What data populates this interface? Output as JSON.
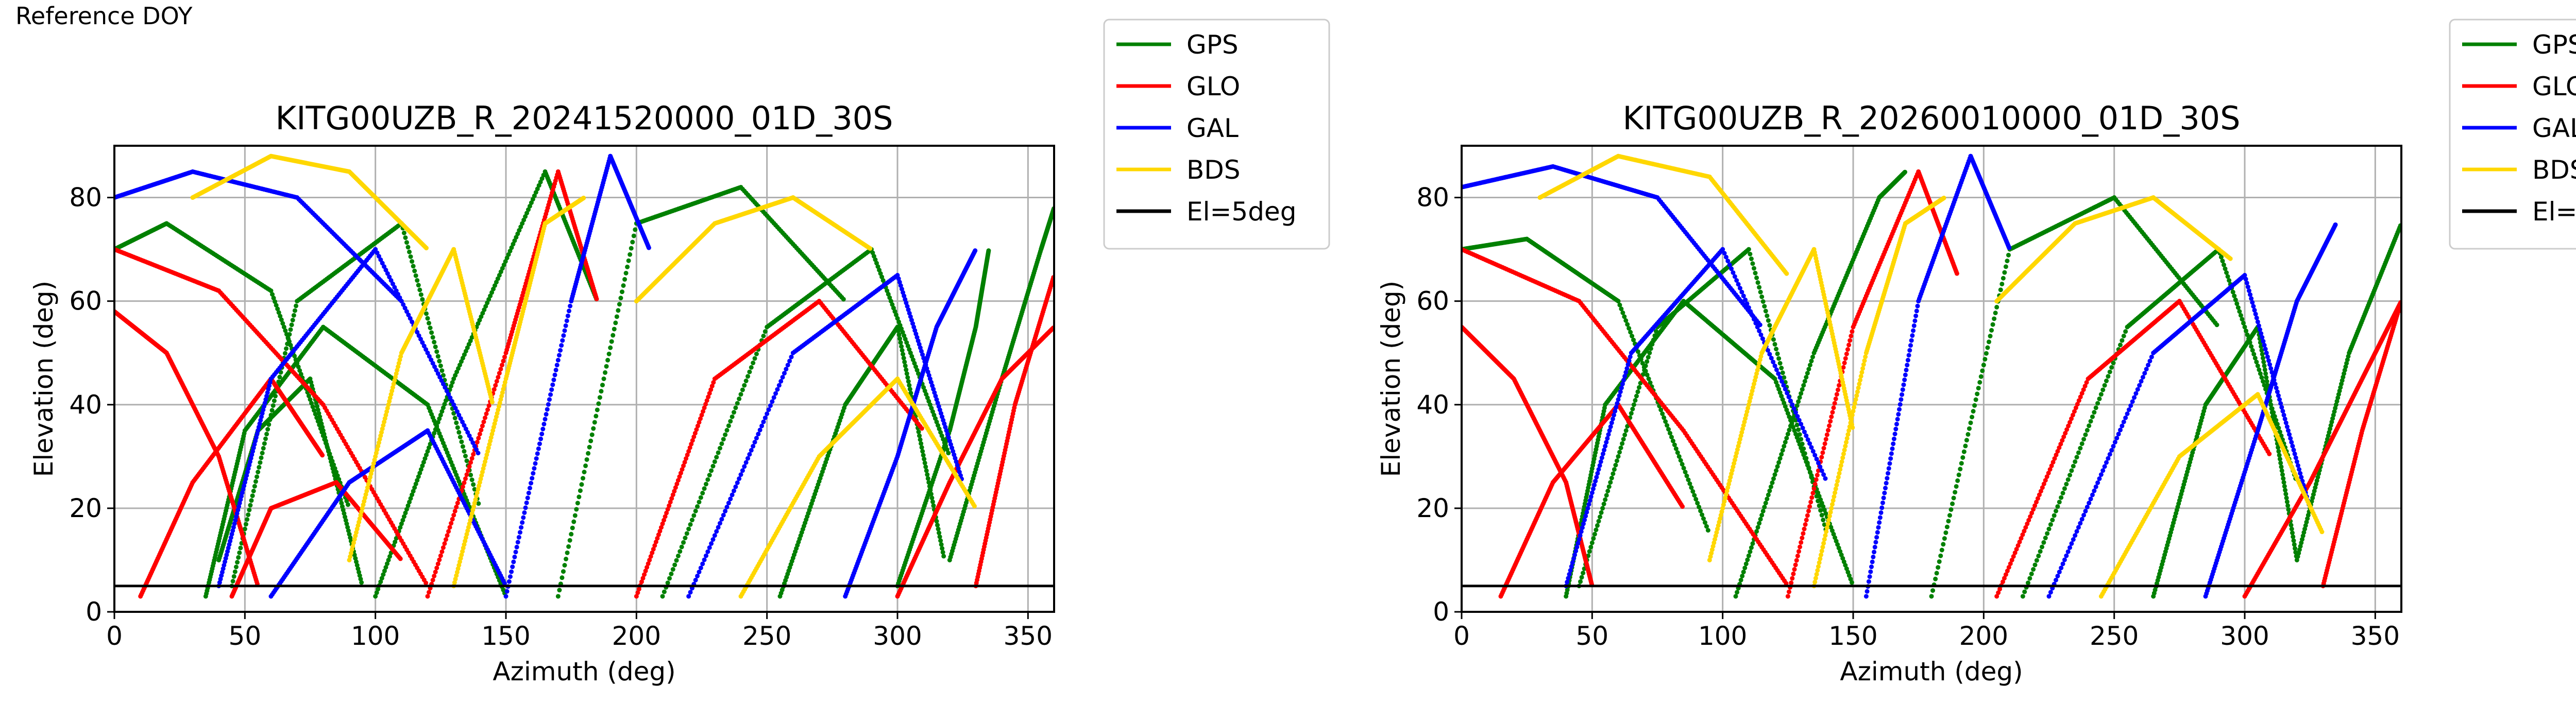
{
  "figure": {
    "label": "Reference DOY"
  },
  "legend": {
    "placement": "outside-right",
    "entries": [
      {
        "name": "GPS",
        "color": "#008000"
      },
      {
        "name": "GLO",
        "color": "#ff0000"
      },
      {
        "name": "GAL",
        "color": "#0000ff"
      },
      {
        "name": "BDS",
        "color": "#ffd700"
      },
      {
        "name": "El=5deg",
        "color": "#000000"
      }
    ]
  },
  "chart_data": [
    {
      "type": "scatter",
      "title": "KITG00UZB_R_20241520000_01D_30S",
      "xlabel": "Azimuth (deg)",
      "ylabel": "Elevation (deg)",
      "xlim": [
        0,
        360
      ],
      "ylim": [
        0,
        90
      ],
      "xticks": [
        0,
        50,
        100,
        150,
        200,
        250,
        300,
        350
      ],
      "yticks": [
        0,
        20,
        40,
        60,
        80
      ],
      "grid": true,
      "reference_line": {
        "name": "El=5deg",
        "y": 5,
        "color": "#000000"
      },
      "series": [
        {
          "name": "GPS",
          "color": "#008000",
          "passes": [
            {
              "az": [
                35,
                50,
                80,
                120,
                150
              ],
              "el": [
                3,
                35,
                55,
                40,
                3
              ]
            },
            {
              "az": [
                100,
                130,
                165,
                185
              ],
              "el": [
                3,
                45,
                85,
                60
              ]
            },
            {
              "az": [
                210,
                250,
                290,
                320
              ],
              "el": [
                3,
                55,
                70,
                30
              ]
            },
            {
              "az": [
                45,
                70,
                110,
                140
              ],
              "el": [
                5,
                60,
                75,
                20
              ]
            },
            {
              "az": [
                255,
                280,
                300,
                318
              ],
              "el": [
                3,
                40,
                55,
                10
              ]
            },
            {
              "az": [
                320,
                340,
                355,
                360
              ],
              "el": [
                10,
                45,
                70,
                78
              ]
            },
            {
              "az": [
                0,
                20,
                60,
                90
              ],
              "el": [
                70,
                75,
                62,
                20
              ]
            },
            {
              "az": [
                40,
                55,
                75,
                95
              ],
              "el": [
                10,
                35,
                45,
                5
              ]
            },
            {
              "az": [
                170,
                200,
                240,
                280
              ],
              "el": [
                3,
                75,
                82,
                60
              ]
            },
            {
              "az": [
                300,
                320,
                330,
                335
              ],
              "el": [
                5,
                35,
                55,
                70
              ]
            }
          ]
        },
        {
          "name": "GLO",
          "color": "#ff0000",
          "passes": [
            {
              "az": [
                0,
                20,
                40,
                55
              ],
              "el": [
                58,
                50,
                30,
                5
              ]
            },
            {
              "az": [
                10,
                30,
                60,
                80
              ],
              "el": [
                3,
                25,
                45,
                30
              ]
            },
            {
              "az": [
                300,
                320,
                340,
                360
              ],
              "el": [
                3,
                25,
                45,
                55
              ]
            },
            {
              "az": [
                120,
                150,
                170,
                185
              ],
              "el": [
                3,
                50,
                85,
                60
              ]
            },
            {
              "az": [
                200,
                230,
                270,
                310
              ],
              "el": [
                3,
                45,
                60,
                35
              ]
            },
            {
              "az": [
                0,
                40,
                80,
                120
              ],
              "el": [
                70,
                62,
                40,
                5
              ]
            },
            {
              "az": [
                330,
                345,
                360
              ],
              "el": [
                5,
                40,
                65
              ]
            },
            {
              "az": [
                45,
                60,
                85,
                110
              ],
              "el": [
                3,
                20,
                25,
                10
              ]
            }
          ]
        },
        {
          "name": "GAL",
          "color": "#0000ff",
          "passes": [
            {
              "az": [
                40,
                60,
                100,
                140
              ],
              "el": [
                5,
                45,
                70,
                30
              ]
            },
            {
              "az": [
                150,
                175,
                190,
                205
              ],
              "el": [
                3,
                60,
                88,
                70
              ]
            },
            {
              "az": [
                220,
                260,
                300,
                325
              ],
              "el": [
                3,
                50,
                65,
                25
              ]
            },
            {
              "az": [
                0,
                30,
                70,
                110
              ],
              "el": [
                80,
                85,
                80,
                60
              ]
            },
            {
              "az": [
                280,
                300,
                315,
                330
              ],
              "el": [
                3,
                30,
                55,
                70
              ]
            },
            {
              "az": [
                60,
                90,
                120,
                150
              ],
              "el": [
                3,
                25,
                35,
                5
              ]
            }
          ]
        },
        {
          "name": "BDS",
          "color": "#ffd700",
          "passes": [
            {
              "az": [
                30,
                60,
                90,
                120
              ],
              "el": [
                80,
                88,
                85,
                70
              ]
            },
            {
              "az": [
                130,
                150,
                165,
                180
              ],
              "el": [
                5,
                45,
                75,
                80
              ]
            },
            {
              "az": [
                200,
                230,
                260,
                290
              ],
              "el": [
                60,
                75,
                80,
                70
              ]
            },
            {
              "az": [
                90,
                110,
                130,
                145
              ],
              "el": [
                10,
                50,
                70,
                40
              ]
            },
            {
              "az": [
                240,
                270,
                300,
                330
              ],
              "el": [
                3,
                30,
                45,
                20
              ]
            }
          ]
        }
      ]
    },
    {
      "type": "scatter",
      "title": "KITG00UZB_R_20260010000_01D_30S",
      "xlabel": "Azimuth (deg)",
      "ylabel": "Elevation (deg)",
      "xlim": [
        0,
        360
      ],
      "ylim": [
        0,
        90
      ],
      "xticks": [
        0,
        50,
        100,
        150,
        200,
        250,
        300,
        350
      ],
      "yticks": [
        0,
        20,
        40,
        60,
        80
      ],
      "grid": true,
      "reference_line": {
        "name": "El=5deg",
        "y": 5,
        "color": "#000000"
      },
      "series": [
        {
          "name": "GPS",
          "color": "#008000",
          "passes": [
            {
              "az": [
                40,
                55,
                85,
                120,
                150
              ],
              "el": [
                3,
                40,
                60,
                45,
                5
              ]
            },
            {
              "az": [
                105,
                135,
                160,
                170
              ],
              "el": [
                3,
                50,
                80,
                85
              ]
            },
            {
              "az": [
                215,
                255,
                290,
                320
              ],
              "el": [
                3,
                55,
                70,
                25
              ]
            },
            {
              "az": [
                45,
                75,
                110,
                140
              ],
              "el": [
                5,
                55,
                70,
                15
              ]
            },
            {
              "az": [
                265,
                285,
                305,
                320
              ],
              "el": [
                3,
                40,
                55,
                10
              ]
            },
            {
              "az": [
                320,
                340,
                360
              ],
              "el": [
                10,
                50,
                75
              ]
            },
            {
              "az": [
                0,
                25,
                60,
                95
              ],
              "el": [
                70,
                72,
                60,
                15
              ]
            },
            {
              "az": [
                180,
                210,
                250,
                290
              ],
              "el": [
                3,
                70,
                80,
                55
              ]
            }
          ]
        },
        {
          "name": "GLO",
          "color": "#ff0000",
          "passes": [
            {
              "az": [
                0,
                20,
                40,
                50
              ],
              "el": [
                55,
                45,
                25,
                5
              ]
            },
            {
              "az": [
                15,
                35,
                60,
                85
              ],
              "el": [
                3,
                25,
                40,
                20
              ]
            },
            {
              "az": [
                300,
                325,
                345,
                360
              ],
              "el": [
                3,
                25,
                45,
                60
              ]
            },
            {
              "az": [
                125,
                150,
                175,
                190
              ],
              "el": [
                3,
                55,
                85,
                65
              ]
            },
            {
              "az": [
                205,
                240,
                275,
                310
              ],
              "el": [
                3,
                45,
                60,
                30
              ]
            },
            {
              "az": [
                0,
                45,
                85,
                125
              ],
              "el": [
                70,
                60,
                35,
                5
              ]
            },
            {
              "az": [
                330,
                345,
                360
              ],
              "el": [
                5,
                35,
                60
              ]
            }
          ]
        },
        {
          "name": "GAL",
          "color": "#0000ff",
          "passes": [
            {
              "az": [
                40,
                65,
                100,
                140
              ],
              "el": [
                5,
                50,
                70,
                25
              ]
            },
            {
              "az": [
                155,
                175,
                195,
                210
              ],
              "el": [
                3,
                60,
                88,
                70
              ]
            },
            {
              "az": [
                225,
                265,
                300,
                325
              ],
              "el": [
                3,
                50,
                65,
                20
              ]
            },
            {
              "az": [
                0,
                35,
                75,
                115
              ],
              "el": [
                82,
                86,
                80,
                55
              ]
            },
            {
              "az": [
                285,
                305,
                320,
                335
              ],
              "el": [
                3,
                35,
                60,
                75
              ]
            }
          ]
        },
        {
          "name": "BDS",
          "color": "#ffd700",
          "passes": [
            {
              "az": [
                30,
                60,
                95,
                125
              ],
              "el": [
                80,
                88,
                84,
                65
              ]
            },
            {
              "az": [
                135,
                155,
                170,
                185
              ],
              "el": [
                5,
                50,
                75,
                80
              ]
            },
            {
              "az": [
                205,
                235,
                265,
                295
              ],
              "el": [
                60,
                75,
                80,
                68
              ]
            },
            {
              "az": [
                95,
                115,
                135,
                150
              ],
              "el": [
                10,
                50,
                70,
                35
              ]
            },
            {
              "az": [
                245,
                275,
                305,
                330
              ],
              "el": [
                3,
                30,
                42,
                15
              ]
            }
          ]
        }
      ]
    }
  ]
}
